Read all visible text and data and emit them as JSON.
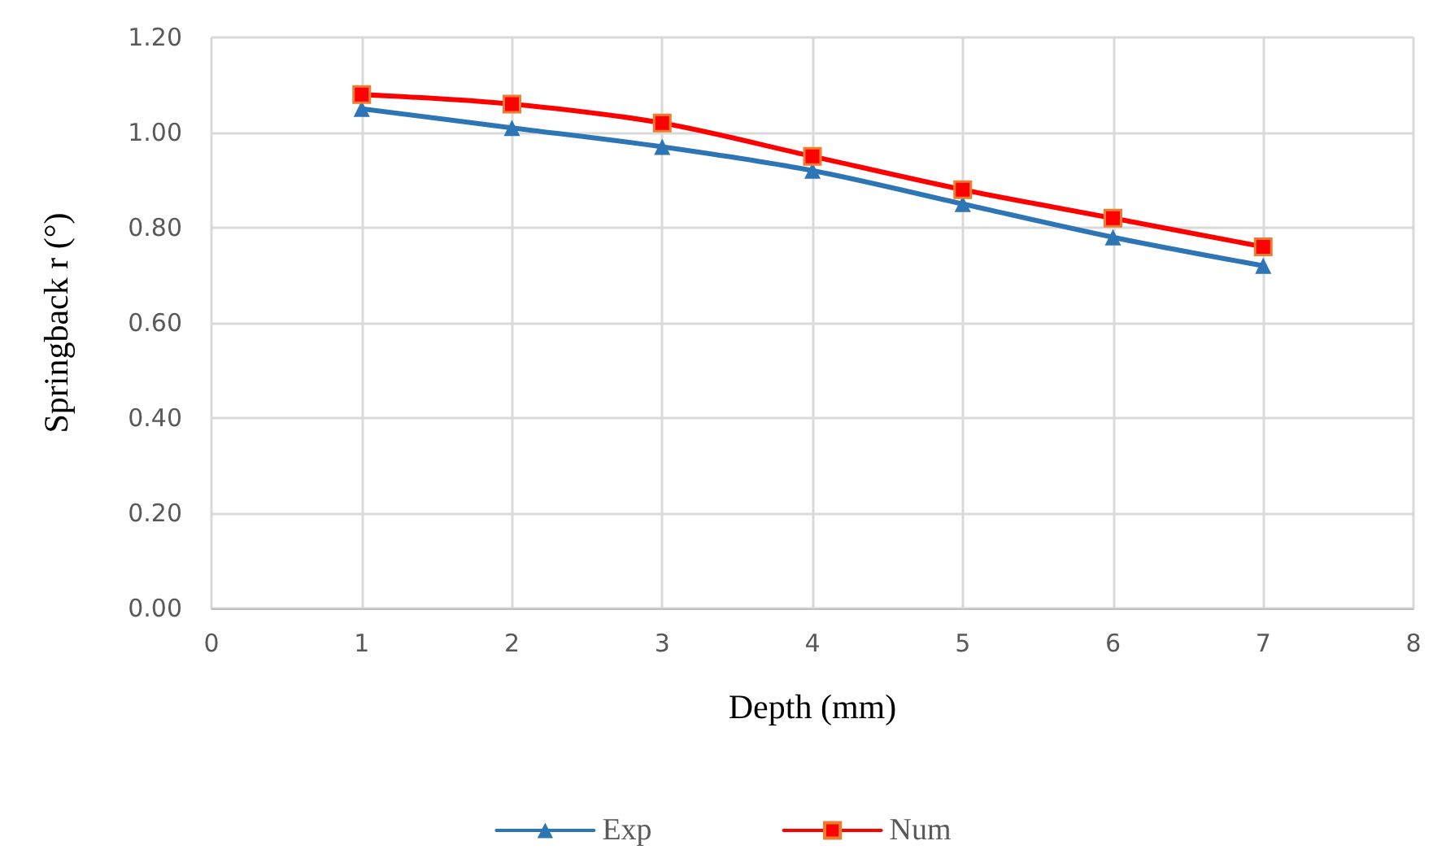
{
  "chart_data": {
    "type": "line",
    "xlabel": "Depth (mm)",
    "ylabel": "Springback r (°)",
    "x": [
      1,
      2,
      3,
      4,
      5,
      6,
      7
    ],
    "series": [
      {
        "name": "Exp",
        "color": "#2e75b6",
        "marker": "triangle",
        "values": [
          1.05,
          1.01,
          0.97,
          0.92,
          0.85,
          0.78,
          0.72
        ]
      },
      {
        "name": "Num",
        "color": "#ff0000",
        "marker": "square",
        "values": [
          1.08,
          1.06,
          1.02,
          0.95,
          0.88,
          0.82,
          0.76
        ]
      }
    ],
    "xlim": [
      0,
      8
    ],
    "xticks": [
      0,
      1,
      2,
      3,
      4,
      5,
      6,
      7,
      8
    ],
    "ylim": [
      0,
      1.2
    ],
    "yticks": [
      {
        "value": 0,
        "label": "0.00"
      },
      {
        "value": 0.2,
        "label": "0.20"
      },
      {
        "value": 0.4,
        "label": "0.40"
      },
      {
        "value": 0.6,
        "label": "0.60"
      },
      {
        "value": 0.8,
        "label": "0.80"
      },
      {
        "value": 1,
        "label": "1.00"
      },
      {
        "value": 1.2,
        "label": "1.20"
      }
    ],
    "grid": true,
    "legend": "bottom",
    "line_style": "solid"
  }
}
